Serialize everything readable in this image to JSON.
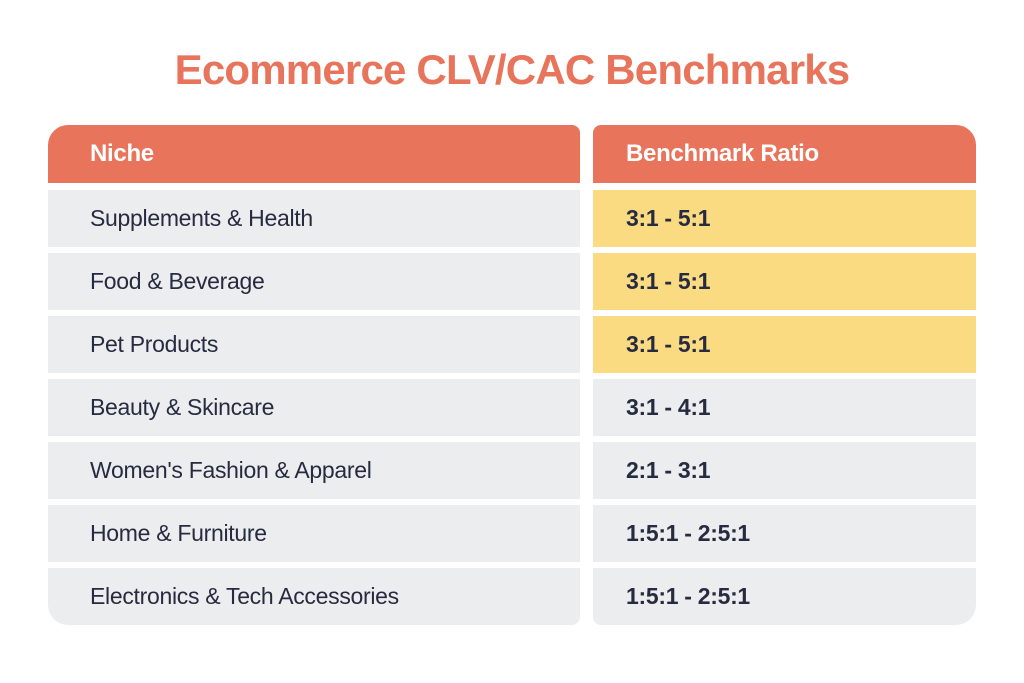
{
  "title": "Ecommerce CLV/CAC Benchmarks",
  "colors": {
    "accent_coral": "#E7745B",
    "highlight_yellow": "#FBDB81",
    "row_gray": "#ECEDEF",
    "text_navy": "#262B40",
    "header_text": "#FFFFFF",
    "background": "#FFFFFF"
  },
  "table": {
    "columns": [
      {
        "label": "Niche"
      },
      {
        "label": "Benchmark Ratio"
      }
    ],
    "rows": [
      {
        "niche": "Supplements & Health",
        "ratio": "3:1 - 5:1",
        "highlighted": true
      },
      {
        "niche": "Food & Beverage",
        "ratio": "3:1 - 5:1",
        "highlighted": true
      },
      {
        "niche": "Pet Products",
        "ratio": "3:1 - 5:1",
        "highlighted": true
      },
      {
        "niche": "Beauty & Skincare",
        "ratio": "3:1 - 4:1",
        "highlighted": false
      },
      {
        "niche": "Women's Fashion & Apparel",
        "ratio": "2:1 - 3:1",
        "highlighted": false
      },
      {
        "niche": "Home & Furniture",
        "ratio": "1:5:1 - 2:5:1",
        "highlighted": false
      },
      {
        "niche": "Electronics & Tech Accessories",
        "ratio": "1:5:1 - 2:5:1",
        "highlighted": false
      }
    ]
  },
  "chart_data": {
    "type": "table",
    "title": "Ecommerce CLV/CAC Benchmarks",
    "columns": [
      "Niche",
      "Benchmark Ratio"
    ],
    "rows": [
      [
        "Supplements & Health",
        "3:1 - 5:1"
      ],
      [
        "Food & Beverage",
        "3:1 - 5:1"
      ],
      [
        "Pet Products",
        "3:1 - 5:1"
      ],
      [
        "Beauty & Skincare",
        "3:1 - 4:1"
      ],
      [
        "Women's Fashion & Apparel",
        "2:1 - 3:1"
      ],
      [
        "Home & Furniture",
        "1:5:1 - 2:5:1"
      ],
      [
        "Electronics & Tech Accessories",
        "1:5:1 - 2:5:1"
      ]
    ],
    "highlighted_rows": [
      0,
      1,
      2
    ],
    "legend_position": "none"
  }
}
